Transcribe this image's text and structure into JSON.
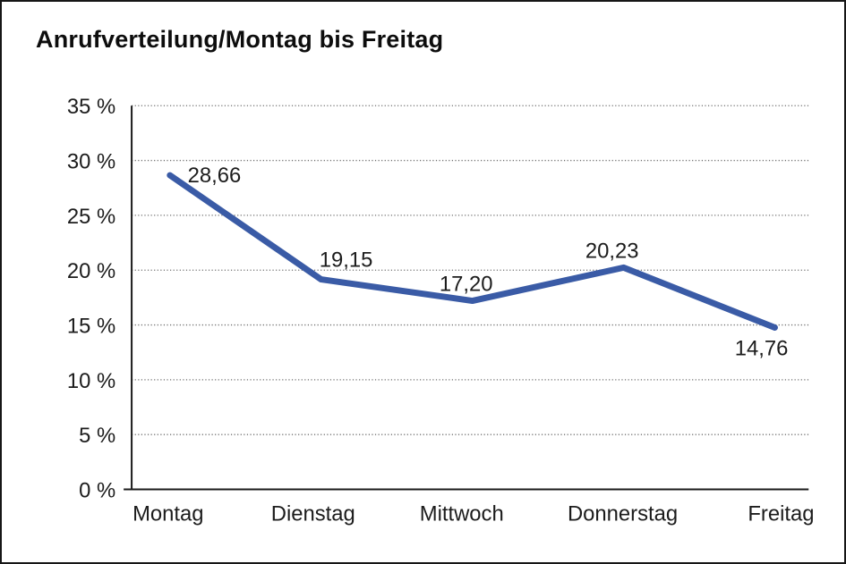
{
  "page": {
    "title": "Anrufverteilung/Montag bis Freitag"
  },
  "chart_data": {
    "type": "line",
    "title": "Anrufverteilung/Montag bis Freitag",
    "categories": [
      "Montag",
      "Dienstag",
      "Mittwoch",
      "Donnerstag",
      "Freitag"
    ],
    "values": [
      28.66,
      19.15,
      17.2,
      20.23,
      14.76
    ],
    "value_labels": [
      "28,66",
      "19,15",
      "17,20",
      "20,23",
      "14,76"
    ],
    "y_tick_labels": [
      "0 %",
      "5 %",
      "10 %",
      "15 %",
      "20 %",
      "25 %",
      "30 %",
      "35 %"
    ],
    "ylim": [
      0,
      35
    ],
    "y_step": 5,
    "xlabel": "",
    "ylabel": "",
    "legend": "none",
    "grid": "dotted-horizontal",
    "line_color": "#3a5ba6",
    "grid_color": "#6e6e6e",
    "axis_color": "#1a1a1a",
    "text_color": "#1c1c1c"
  }
}
